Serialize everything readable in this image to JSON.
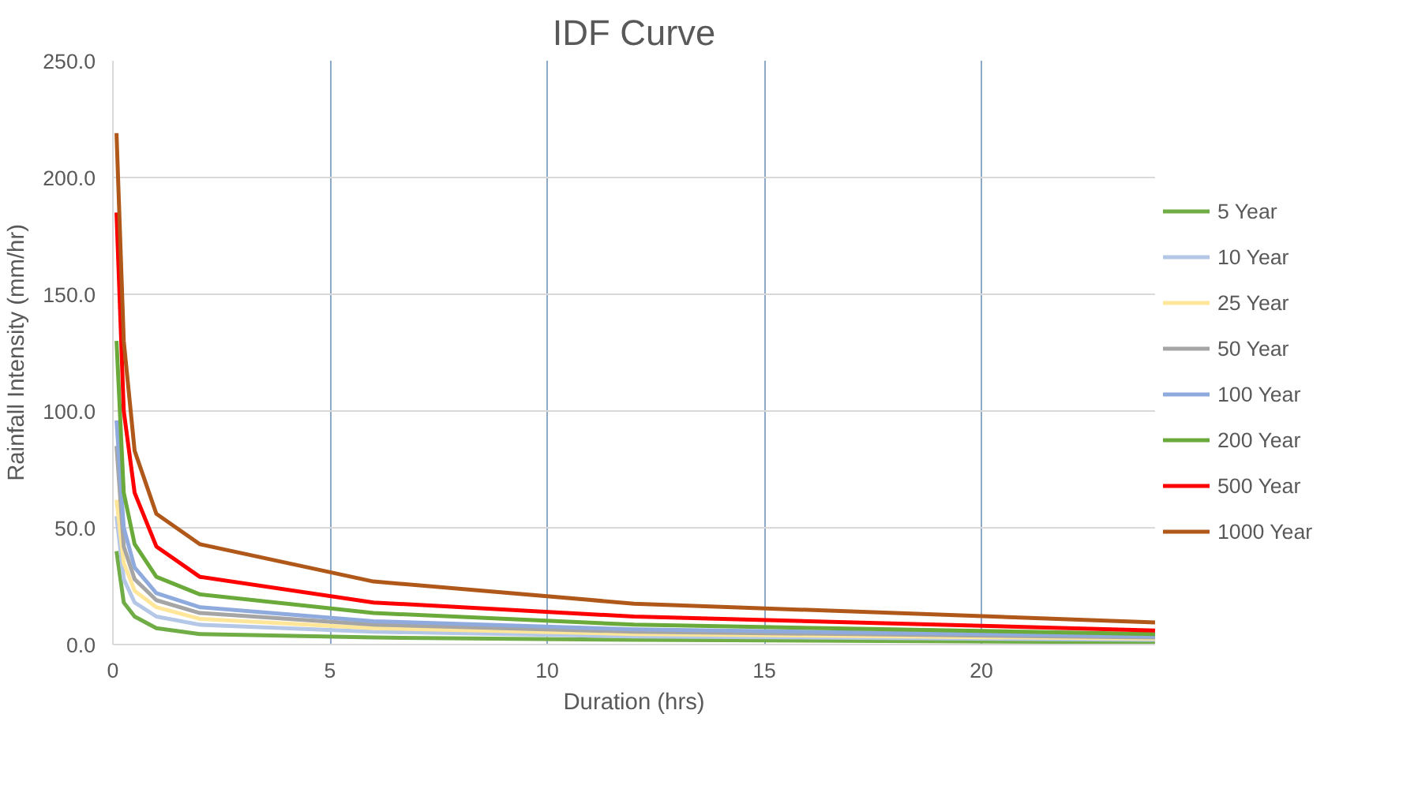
{
  "chart_data": {
    "type": "line",
    "title": "IDF Curve",
    "xlabel": "Duration (hrs)",
    "ylabel": "Rainfall Intensity (mm/hr)",
    "x": [
      0.083,
      0.25,
      0.5,
      1,
      2,
      6,
      12,
      24
    ],
    "xlim": [
      0,
      24
    ],
    "xticks": [
      0,
      5,
      10,
      15,
      20
    ],
    "ylim": [
      0,
      250
    ],
    "yticks": [
      {
        "value": 0,
        "label": "0.0"
      },
      {
        "value": 50,
        "label": "50.0"
      },
      {
        "value": 100,
        "label": "100.0"
      },
      {
        "value": 150,
        "label": "150.0"
      },
      {
        "value": 200,
        "label": "200.0"
      },
      {
        "value": 250,
        "label": "250.0"
      }
    ],
    "grid": true,
    "legend": "right",
    "marker": "none",
    "line_style": "solid",
    "series": [
      {
        "name": "5 Year",
        "color": "#70ad47",
        "values": [
          40,
          18,
          12,
          7,
          4.5,
          3,
          2,
          1
        ]
      },
      {
        "name": "10 Year",
        "color": "#b4c7e7",
        "values": [
          55,
          28,
          18,
          12,
          8.5,
          5.5,
          3.5,
          2
        ]
      },
      {
        "name": "25 Year",
        "color": "#ffe699",
        "values": [
          62,
          35,
          23,
          16,
          11,
          7,
          4.5,
          2.5
        ]
      },
      {
        "name": "50 Year",
        "color": "#a5a5a5",
        "values": [
          85,
          42,
          28,
          19,
          13.5,
          8.5,
          5.5,
          3
        ]
      },
      {
        "name": "100 Year",
        "color": "#8faadc",
        "values": [
          96,
          50,
          33,
          22,
          16,
          10,
          6.5,
          3.5
        ]
      },
      {
        "name": "200 Year",
        "color": "#6aaa3a",
        "values": [
          130,
          65,
          43,
          29,
          21.5,
          13.5,
          8.5,
          4.5
        ]
      },
      {
        "name": "500 Year",
        "color": "#ff0000",
        "values": [
          185,
          100,
          65,
          42,
          29,
          18,
          12,
          6
        ]
      },
      {
        "name": "1000 Year",
        "color": "#b0581a",
        "values": [
          219,
          130,
          83,
          56,
          43,
          27,
          17.5,
          9.5
        ]
      }
    ]
  }
}
